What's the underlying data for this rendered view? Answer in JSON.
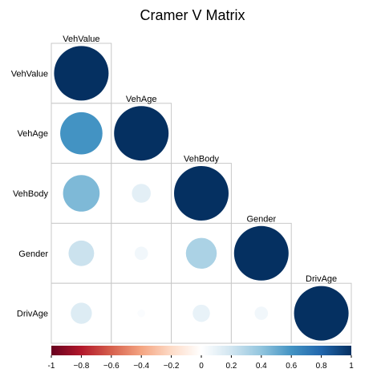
{
  "chart_data": {
    "type": "heatmap",
    "title": "Cramer V Matrix",
    "variables": [
      "VehValue",
      "VehAge",
      "VehBody",
      "Gender",
      "DrivAge"
    ],
    "shape": "circle",
    "layout": "lower-triangle",
    "values": [
      [
        1.0
      ],
      [
        0.6,
        1.0
      ],
      [
        0.45,
        0.12,
        1.0
      ],
      [
        0.22,
        0.06,
        0.32,
        1.0
      ],
      [
        0.15,
        0.02,
        0.1,
        0.06,
        1.0
      ]
    ],
    "colorbar": {
      "range": [
        -1,
        1
      ],
      "ticks": [
        "-1",
        "−0.8",
        "−0.6",
        "−0.4",
        "−0.2",
        "0",
        "0.2",
        "0.4",
        "0.6",
        "0.8",
        "1"
      ],
      "stops": [
        {
          "v": -1.0,
          "c": "#67001f"
        },
        {
          "v": -0.8,
          "c": "#b2182b"
        },
        {
          "v": -0.6,
          "c": "#d6604d"
        },
        {
          "v": -0.4,
          "c": "#f4a582"
        },
        {
          "v": -0.2,
          "c": "#fddbc7"
        },
        {
          "v": 0.0,
          "c": "#ffffff"
        },
        {
          "v": 0.2,
          "c": "#d1e5f0"
        },
        {
          "v": 0.4,
          "c": "#92c5de"
        },
        {
          "v": 0.6,
          "c": "#4393c3"
        },
        {
          "v": 0.8,
          "c": "#2166ac"
        },
        {
          "v": 1.0,
          "c": "#053061"
        }
      ]
    }
  }
}
